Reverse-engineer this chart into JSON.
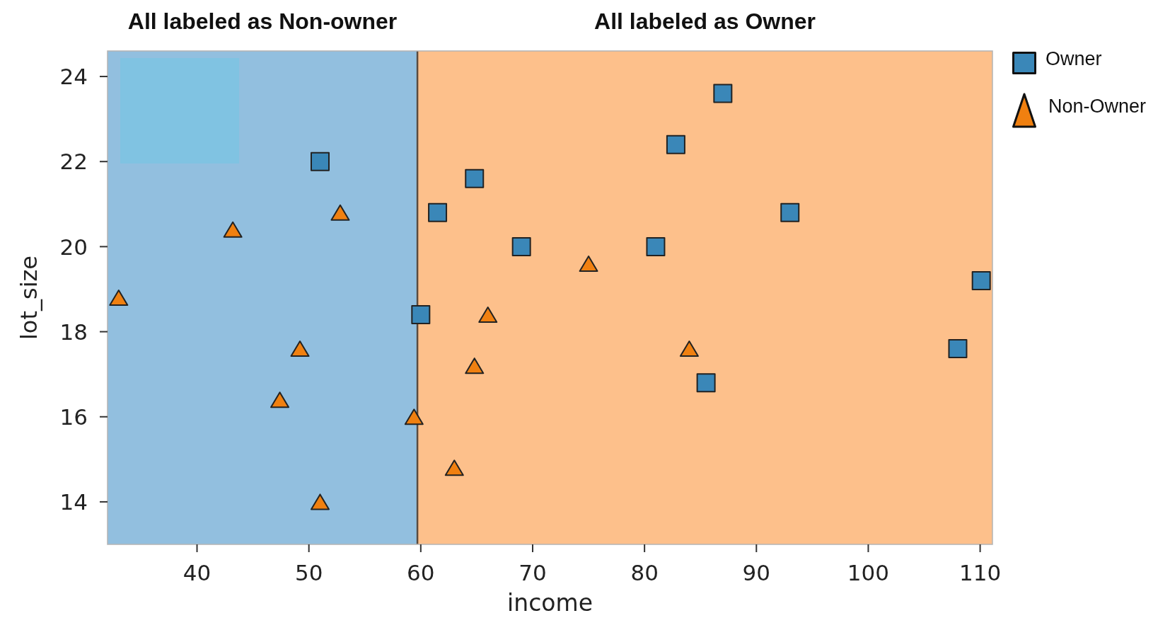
{
  "chart_data": {
    "type": "scatter",
    "xlabel": "income",
    "ylabel": "lot_size",
    "xlim": [
      32,
      111.1
    ],
    "ylim": [
      13,
      24.6
    ],
    "xticks": [
      40,
      50,
      60,
      70,
      80,
      90,
      100,
      110
    ],
    "yticks": [
      14,
      16,
      18,
      20,
      22,
      24
    ],
    "legend": "top right",
    "bands": [
      {
        "axis": "x",
        "from": 32,
        "to": 59.7,
        "label": "All labeled as Non-owner",
        "color": "#92bfdf"
      },
      {
        "axis": "x",
        "from": 59.7,
        "to": 111.1,
        "label": "All labeled as Owner",
        "color": "#fdc08b"
      }
    ],
    "ref_lines": [
      {
        "axis": "x",
        "value": 59.7,
        "color": "#5a4a3e"
      }
    ],
    "series": [
      {
        "name": "Owner",
        "color": "#3a87b8",
        "marker": "square",
        "x": [
          60,
          85.5,
          64.8,
          61.5,
          87,
          110.1,
          108,
          82.8,
          69,
          93,
          51,
          81
        ],
        "values": [
          18.4,
          16.8,
          21.6,
          20.8,
          23.6,
          19.2,
          17.6,
          22.4,
          20,
          20.8,
          22,
          20
        ]
      },
      {
        "name": "Non-Owner",
        "color": "#f08010",
        "marker": "triangle",
        "x": [
          75,
          52.8,
          64.8,
          43.2,
          84,
          49.2,
          59.4,
          66,
          47.4,
          33,
          51,
          63
        ],
        "values": [
          19.6,
          20.8,
          17.2,
          20.4,
          17.6,
          17.6,
          16,
          18.4,
          16.4,
          18.8,
          14,
          14.8
        ]
      }
    ]
  }
}
